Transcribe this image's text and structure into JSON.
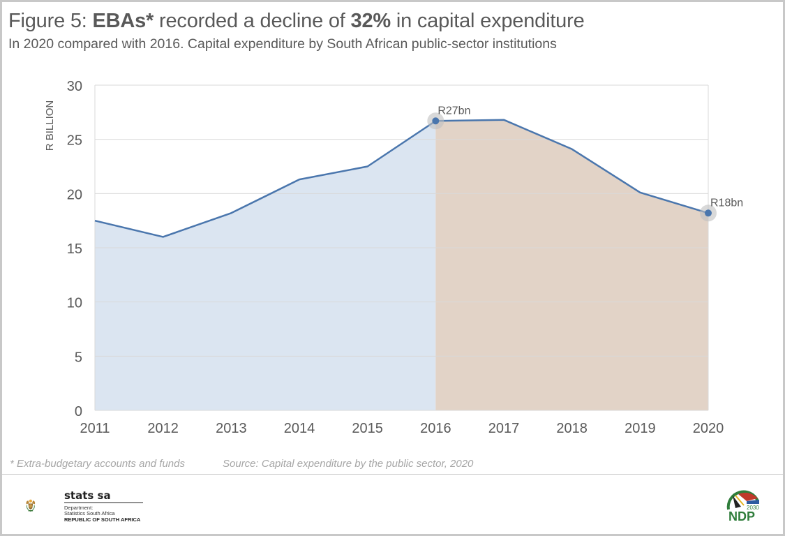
{
  "header": {
    "title_prefix": "Figure 5: ",
    "title_bold1": "EBAs*",
    "title_mid": " recorded a decline of ",
    "title_bold2": "32%",
    "title_suffix": " in capital expenditure",
    "subtitle": "In 2020 compared with 2016. Capital expenditure by South African public-sector institutions"
  },
  "footer": {
    "footnote": "* Extra-budgetary accounts and funds",
    "source": "Source: Capital expenditure by the public sector, 2020",
    "stats_name": "stats sa",
    "stats_dept1": "Department:",
    "stats_dept2": "Statistics South Africa",
    "stats_rsa": "REPUBLIC OF SOUTH AFRICA",
    "ndp_label": "NDP",
    "ndp_year": "2030"
  },
  "colors": {
    "line": "#4a76ad",
    "area_before": "#dbe5f1",
    "area_after": "#e2d3c7",
    "grid": "#d9d9d9",
    "text": "#595959"
  },
  "chart_data": {
    "type": "area",
    "title": "Figure 5: EBAs* recorded a decline of 32% in capital expenditure",
    "subtitle": "In 2020 compared with 2016. Capital expenditure by South African public-sector institutions",
    "xlabel": "",
    "ylabel": "R BILLION",
    "categories": [
      "2011",
      "2012",
      "2013",
      "2014",
      "2015",
      "2016",
      "2017",
      "2018",
      "2019",
      "2020"
    ],
    "series": [
      {
        "name": "Capital expenditure (R billion)",
        "values": [
          17.5,
          16.0,
          18.2,
          21.3,
          22.5,
          26.7,
          26.8,
          24.1,
          20.1,
          18.2
        ]
      }
    ],
    "shaded_regions": [
      {
        "from": "2011",
        "to": "2016",
        "color": "#dbe5f1"
      },
      {
        "from": "2016",
        "to": "2020",
        "color": "#e2d3c7"
      }
    ],
    "annotations": [
      {
        "x": "2016",
        "label": "R27bn"
      },
      {
        "x": "2020",
        "label": "R18bn"
      }
    ],
    "ylim": [
      0,
      30
    ],
    "yticks": [
      0,
      5,
      10,
      15,
      20,
      25,
      30
    ],
    "grid": true,
    "legend": "none"
  }
}
